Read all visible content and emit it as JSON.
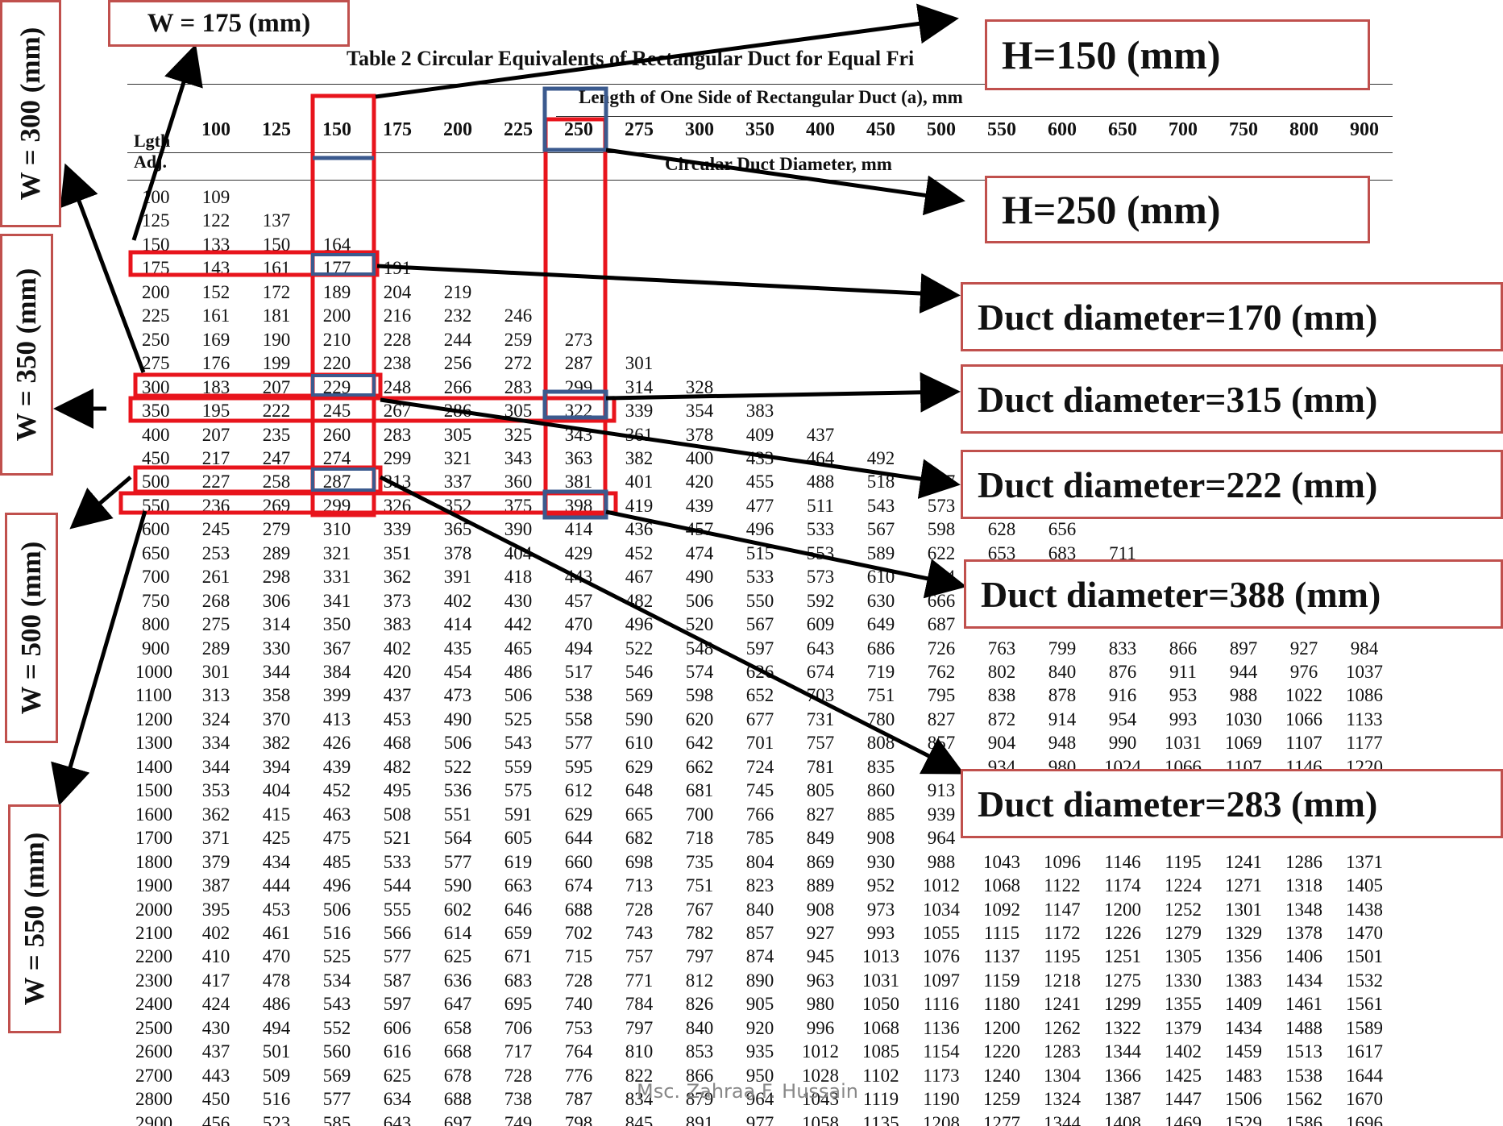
{
  "table": {
    "title": "Table 2    Circular Equivalents of Rectangular Duct for Equal Fri",
    "subtitle_top": "Length of One Side of Rectangular Duct (a), mm",
    "subtitle_bottom": "Circular Duct Diameter, mm",
    "corner_label_1": "Lgth",
    "corner_label_2": "Adj.",
    "columns": [
      "100",
      "125",
      "150",
      "175",
      "200",
      "225",
      "250",
      "275",
      "300",
      "350",
      "400",
      "450",
      "500",
      "550",
      "600",
      "650",
      "700",
      "750",
      "800",
      "900"
    ],
    "rows": [
      {
        "label": "100",
        "values": [
          "109"
        ]
      },
      {
        "label": "125",
        "values": [
          "122",
          "137"
        ]
      },
      {
        "label": "150",
        "values": [
          "133",
          "150",
          "164"
        ]
      },
      {
        "label": "175",
        "values": [
          "143",
          "161",
          "177",
          "191"
        ]
      },
      {
        "label": "200",
        "values": [
          "152",
          "172",
          "189",
          "204",
          "219"
        ]
      },
      {
        "label": "225",
        "values": [
          "161",
          "181",
          "200",
          "216",
          "232",
          "246"
        ]
      },
      {
        "label": "250",
        "values": [
          "169",
          "190",
          "210",
          "228",
          "244",
          "259",
          "273"
        ]
      },
      {
        "label": "275",
        "values": [
          "176",
          "199",
          "220",
          "238",
          "256",
          "272",
          "287",
          "301"
        ]
      },
      {
        "label": "300",
        "values": [
          "183",
          "207",
          "229",
          "248",
          "266",
          "283",
          "299",
          "314",
          "328"
        ]
      },
      {
        "label": "350",
        "values": [
          "195",
          "222",
          "245",
          "267",
          "286",
          "305",
          "322",
          "339",
          "354",
          "383"
        ]
      },
      {
        "label": "400",
        "values": [
          "207",
          "235",
          "260",
          "283",
          "305",
          "325",
          "343",
          "361",
          "378",
          "409",
          "437"
        ]
      },
      {
        "label": "450",
        "values": [
          "217",
          "247",
          "274",
          "299",
          "321",
          "343",
          "363",
          "382",
          "400",
          "433",
          "464",
          "492"
        ]
      },
      {
        "label": "500",
        "values": [
          "227",
          "258",
          "287",
          "313",
          "337",
          "360",
          "381",
          "401",
          "420",
          "455",
          "488",
          "518",
          "547"
        ]
      },
      {
        "label": "550",
        "values": [
          "236",
          "269",
          "299",
          "326",
          "352",
          "375",
          "398",
          "419",
          "439",
          "477",
          "511",
          "543",
          "573"
        ]
      },
      {
        "label": "600",
        "values": [
          "245",
          "279",
          "310",
          "339",
          "365",
          "390",
          "414",
          "436",
          "457",
          "496",
          "533",
          "567",
          "598",
          "628",
          "656"
        ]
      },
      {
        "label": "650",
        "values": [
          "253",
          "289",
          "321",
          "351",
          "378",
          "404",
          "429",
          "452",
          "474",
          "515",
          "553",
          "589",
          "622",
          "653",
          "683",
          "711"
        ]
      },
      {
        "label": "700",
        "values": [
          "261",
          "298",
          "331",
          "362",
          "391",
          "418",
          "443",
          "467",
          "490",
          "533",
          "573",
          "610",
          "644"
        ]
      },
      {
        "label": "750",
        "values": [
          "268",
          "306",
          "341",
          "373",
          "402",
          "430",
          "457",
          "482",
          "506",
          "550",
          "592",
          "630",
          "666"
        ]
      },
      {
        "label": "800",
        "values": [
          "275",
          "314",
          "350",
          "383",
          "414",
          "442",
          "470",
          "496",
          "520",
          "567",
          "609",
          "649",
          "687"
        ]
      },
      {
        "label": "900",
        "values": [
          "289",
          "330",
          "367",
          "402",
          "435",
          "465",
          "494",
          "522",
          "548",
          "597",
          "643",
          "686",
          "726",
          "763",
          "799",
          "833",
          "866",
          "897",
          "927",
          "984"
        ]
      },
      {
        "label": "1000",
        "values": [
          "301",
          "344",
          "384",
          "420",
          "454",
          "486",
          "517",
          "546",
          "574",
          "626",
          "674",
          "719",
          "762",
          "802",
          "840",
          "876",
          "911",
          "944",
          "976",
          "1037"
        ]
      },
      {
        "label": "1100",
        "values": [
          "313",
          "358",
          "399",
          "437",
          "473",
          "506",
          "538",
          "569",
          "598",
          "652",
          "703",
          "751",
          "795",
          "838",
          "878",
          "916",
          "953",
          "988",
          "1022",
          "1086"
        ]
      },
      {
        "label": "1200",
        "values": [
          "324",
          "370",
          "413",
          "453",
          "490",
          "525",
          "558",
          "590",
          "620",
          "677",
          "731",
          "780",
          "827",
          "872",
          "914",
          "954",
          "993",
          "1030",
          "1066",
          "1133"
        ]
      },
      {
        "label": "1300",
        "values": [
          "334",
          "382",
          "426",
          "468",
          "506",
          "543",
          "577",
          "610",
          "642",
          "701",
          "757",
          "808",
          "857",
          "904",
          "948",
          "990",
          "1031",
          "1069",
          "1107",
          "1177"
        ]
      },
      {
        "label": "1400",
        "values": [
          "344",
          "394",
          "439",
          "482",
          "522",
          "559",
          "595",
          "629",
          "662",
          "724",
          "781",
          "835",
          "886",
          "934",
          "980",
          "1024",
          "1066",
          "1107",
          "1146",
          "1220"
        ]
      },
      {
        "label": "1500",
        "values": [
          "353",
          "404",
          "452",
          "495",
          "536",
          "575",
          "612",
          "648",
          "681",
          "745",
          "805",
          "860",
          "913"
        ]
      },
      {
        "label": "1600",
        "values": [
          "362",
          "415",
          "463",
          "508",
          "551",
          "591",
          "629",
          "665",
          "700",
          "766",
          "827",
          "885",
          "939"
        ]
      },
      {
        "label": "1700",
        "values": [
          "371",
          "425",
          "475",
          "521",
          "564",
          "605",
          "644",
          "682",
          "718",
          "785",
          "849",
          "908",
          "964"
        ]
      },
      {
        "label": "1800",
        "values": [
          "379",
          "434",
          "485",
          "533",
          "577",
          "619",
          "660",
          "698",
          "735",
          "804",
          "869",
          "930",
          "988",
          "1043",
          "1096",
          "1146",
          "1195",
          "1241",
          "1286",
          "1371"
        ]
      },
      {
        "label": "1900",
        "values": [
          "387",
          "444",
          "496",
          "544",
          "590",
          "663",
          "674",
          "713",
          "751",
          "823",
          "889",
          "952",
          "1012",
          "1068",
          "1122",
          "1174",
          "1224",
          "1271",
          "1318",
          "1405"
        ]
      },
      {
        "label": "2000",
        "values": [
          "395",
          "453",
          "506",
          "555",
          "602",
          "646",
          "688",
          "728",
          "767",
          "840",
          "908",
          "973",
          "1034",
          "1092",
          "1147",
          "1200",
          "1252",
          "1301",
          "1348",
          "1438"
        ]
      },
      {
        "label": "2100",
        "values": [
          "402",
          "461",
          "516",
          "566",
          "614",
          "659",
          "702",
          "743",
          "782",
          "857",
          "927",
          "993",
          "1055",
          "1115",
          "1172",
          "1226",
          "1279",
          "1329",
          "1378",
          "1470"
        ]
      },
      {
        "label": "2200",
        "values": [
          "410",
          "470",
          "525",
          "577",
          "625",
          "671",
          "715",
          "757",
          "797",
          "874",
          "945",
          "1013",
          "1076",
          "1137",
          "1195",
          "1251",
          "1305",
          "1356",
          "1406",
          "1501"
        ]
      },
      {
        "label": "2300",
        "values": [
          "417",
          "478",
          "534",
          "587",
          "636",
          "683",
          "728",
          "771",
          "812",
          "890",
          "963",
          "1031",
          "1097",
          "1159",
          "1218",
          "1275",
          "1330",
          "1383",
          "1434",
          "1532"
        ]
      },
      {
        "label": "2400",
        "values": [
          "424",
          "486",
          "543",
          "597",
          "647",
          "695",
          "740",
          "784",
          "826",
          "905",
          "980",
          "1050",
          "1116",
          "1180",
          "1241",
          "1299",
          "1355",
          "1409",
          "1461",
          "1561"
        ]
      },
      {
        "label": "2500",
        "values": [
          "430",
          "494",
          "552",
          "606",
          "658",
          "706",
          "753",
          "797",
          "840",
          "920",
          "996",
          "1068",
          "1136",
          "1200",
          "1262",
          "1322",
          "1379",
          "1434",
          "1488",
          "1589"
        ]
      },
      {
        "label": "2600",
        "values": [
          "437",
          "501",
          "560",
          "616",
          "668",
          "717",
          "764",
          "810",
          "853",
          "935",
          "1012",
          "1085",
          "1154",
          "1220",
          "1283",
          "1344",
          "1402",
          "1459",
          "1513",
          "1617"
        ]
      },
      {
        "label": "2700",
        "values": [
          "443",
          "509",
          "569",
          "625",
          "678",
          "728",
          "776",
          "822",
          "866",
          "950",
          "1028",
          "1102",
          "1173",
          "1240",
          "1304",
          "1366",
          "1425",
          "1483",
          "1538",
          "1644"
        ]
      },
      {
        "label": "2800",
        "values": [
          "450",
          "516",
          "577",
          "634",
          "688",
          "738",
          "787",
          "834",
          "879",
          "964",
          "1043",
          "1119",
          "1190",
          "1259",
          "1324",
          "1387",
          "1447",
          "1506",
          "1562",
          "1670"
        ]
      },
      {
        "label": "2900",
        "values": [
          "456",
          "523",
          "585",
          "643",
          "697",
          "749",
          "798",
          "845",
          "891",
          "977",
          "1058",
          "1135",
          "1208",
          "1277",
          "1344",
          "1408",
          "1469",
          "1529",
          "1586",
          "1696"
        ]
      }
    ]
  },
  "annotations": {
    "w175": "W = 175 (mm)",
    "w300": "W = 300 (mm)",
    "w350": "W = 350 (mm)",
    "w500": "W = 500 (mm)",
    "w550": "W = 550 (mm)",
    "h150": "H=150  (mm)",
    "h250": "H=250  (mm)",
    "d170": "Duct diameter=170 (mm)",
    "d315": "Duct diameter=315 (mm)",
    "d222": "Duct diameter=222 (mm)",
    "d388": "Duct diameter=388 (mm)",
    "d283": "Duct diameter=283 (mm)"
  },
  "colors": {
    "red": "#e8141c",
    "blue": "#3b5a8e",
    "label_border": "#c0504d",
    "arrow": "#000000"
  },
  "watermark": "Msc. Zahraa F. Hussain"
}
